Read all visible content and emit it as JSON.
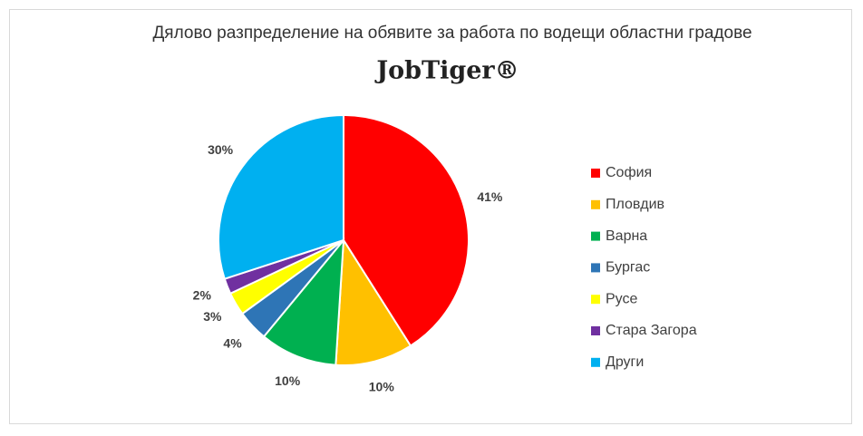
{
  "chart_data": {
    "type": "pie",
    "title": "Дялово разпределение на обявите за работа по водещи областни градове",
    "subtitle": "JobTiger®",
    "categories": [
      "София",
      "Пловдив",
      "Варна",
      "Бургас",
      "Русе",
      "Стара Загора",
      "Други"
    ],
    "values": [
      41,
      10,
      10,
      4,
      3,
      2,
      30
    ],
    "value_labels": [
      "41%",
      "10%",
      "10%",
      "4%",
      "3%",
      "2%",
      "30%"
    ],
    "colors": [
      "#ff0000",
      "#ffc000",
      "#00b050",
      "#2e75b6",
      "#ffff00",
      "#7030a0",
      "#00b0f0"
    ],
    "legend": "right"
  }
}
